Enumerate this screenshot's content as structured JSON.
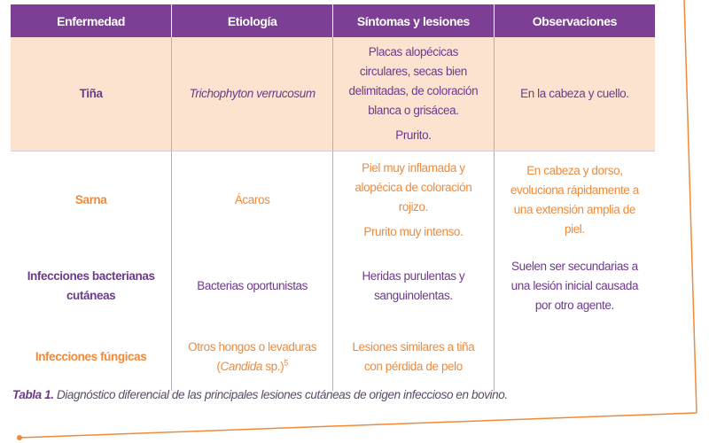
{
  "table": {
    "header": [
      "Enfermedad",
      "Etiología",
      "Síntomas y lesiones",
      "Observaciones"
    ],
    "rows": [
      [
        "Tiña",
        "Trichophyton verrucosum",
        [
          "Placas alopécicas circulares, secas bien delimitadas, de coloración blanca o grisácea.",
          "Prurito."
        ],
        "En la cabeza y cuello."
      ],
      [
        "Sarna",
        "Ácaros",
        [
          "Piel muy inflamada y alopécica de coloración rojizo.",
          "Prurito muy intenso."
        ],
        "En cabeza y dorso, evoluciona rápidamente a una extensión amplia de piel."
      ],
      [
        "Infecciones bacterianas cutáneas",
        "Bacterias oportunistas",
        "Heridas purulentas y sanguinolentas.",
        "Suelen ser secundarias a una lesión inicial causada por otro agente."
      ],
      [
        "Infecciones fúngicas",
        [
          "Otros hongos o levaduras",
          "(",
          "Candida",
          " sp.)",
          "5"
        ],
        "Lesiones similares a tiña con pérdida de pelo"
      ]
    ]
  },
  "caption": {
    "label": "Tabla 1.",
    "text": "Diagnóstico diferencial de las principales lesiones cutáneas de origen infeccioso en bovino."
  }
}
